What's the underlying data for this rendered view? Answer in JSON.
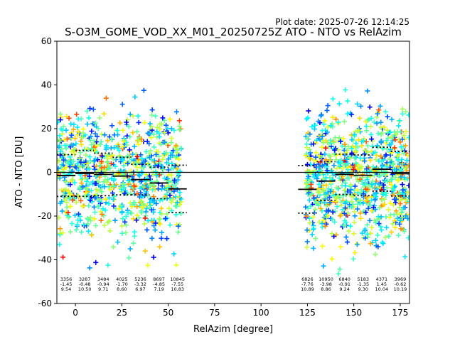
{
  "plot_date": "Plot date: 2025-07-26 12:14:25",
  "chart_data": {
    "type": "scatter",
    "title": "S-O3M_GOME_VOD_XX_M01_20250725Z ATO - NTO vs RelAzim",
    "xlabel": "RelAzim [degree]",
    "ylabel": "ATO - NTO [DU]",
    "xlim": [
      -10,
      180
    ],
    "ylim": [
      -60,
      60
    ],
    "xticks": [
      0,
      25,
      50,
      75,
      100,
      125,
      150,
      175
    ],
    "yticks": [
      -60,
      -40,
      -20,
      0,
      20,
      40,
      60
    ],
    "grid": false,
    "zero_line": 0,
    "marker": "+",
    "color_scale": "jet",
    "scatter_regions": [
      {
        "x_range": [
          -10,
          57
        ],
        "y_typical": [
          -30,
          28
        ],
        "y_extreme": [
          -48,
          42
        ]
      },
      {
        "x_range": [
          124,
          180
        ],
        "y_typical": [
          -33,
          30
        ],
        "y_extreme": [
          -48,
          43
        ]
      }
    ],
    "bins": [
      {
        "x": [
          -10,
          0
        ],
        "count": "3356",
        "mean": "-1.45",
        "std": "9.54",
        "stats_x": -5
      },
      {
        "x": [
          0,
          10
        ],
        "count": "3287",
        "mean": "-0.48",
        "std": "10.50",
        "stats_x": 5
      },
      {
        "x": [
          10,
          20
        ],
        "count": "3484",
        "mean": "-0.94",
        "std": "9.71",
        "stats_x": 15
      },
      {
        "x": [
          20,
          30
        ],
        "count": "4025",
        "mean": "-1.70",
        "std": "8.60",
        "stats_x": 25
      },
      {
        "x": [
          30,
          40
        ],
        "count": "5236",
        "mean": "-3.32",
        "std": "6.97",
        "stats_x": 35
      },
      {
        "x": [
          40,
          50
        ],
        "count": "8697",
        "mean": "-4.85",
        "std": "7.19",
        "stats_x": 45
      },
      {
        "x": [
          50,
          60
        ],
        "count": "10845",
        "mean": "-7.55",
        "std": "10.83",
        "stats_x": 55
      },
      {
        "x": [
          120,
          130
        ],
        "count": "6826",
        "mean": "-7.76",
        "std": "10.89",
        "stats_x": 125
      },
      {
        "x": [
          130,
          140
        ],
        "count": "10950",
        "mean": "-3.98",
        "std": "8.86",
        "stats_x": 135
      },
      {
        "x": [
          140,
          150
        ],
        "count": "6840",
        "mean": "-0.91",
        "std": "9.24",
        "stats_x": 145
      },
      {
        "x": [
          150,
          160
        ],
        "count": "5183",
        "mean": "-1.35",
        "std": "9.30",
        "stats_x": 155
      },
      {
        "x": [
          160,
          170
        ],
        "count": "4371",
        "mean": "1.45",
        "std": "10.04",
        "stats_x": 165
      },
      {
        "x": [
          170,
          180
        ],
        "count": "3969",
        "mean": "-0.62",
        "std": "10.19",
        "stats_x": 175
      }
    ]
  }
}
